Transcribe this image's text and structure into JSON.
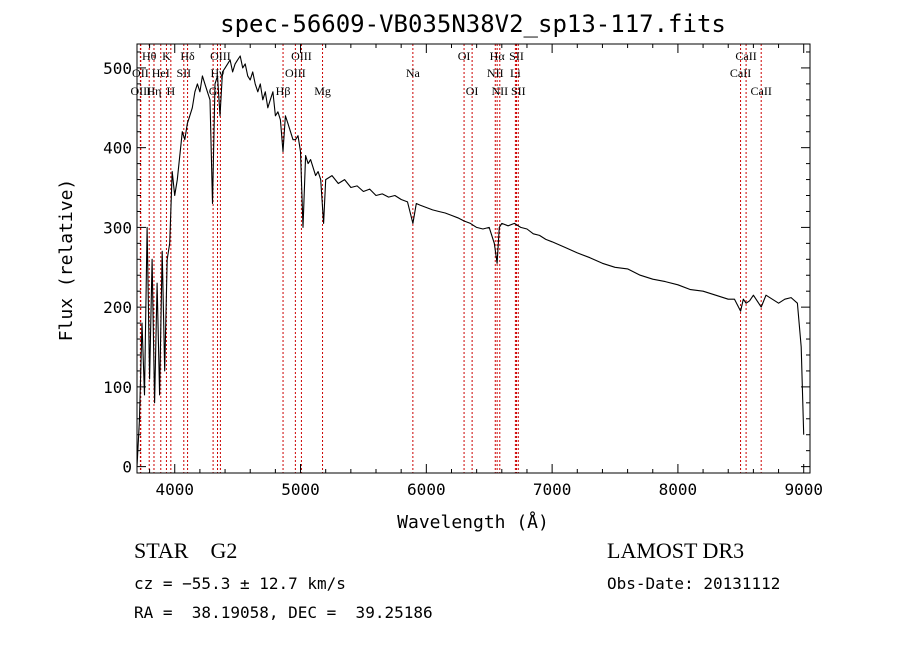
{
  "chart_data": {
    "type": "line",
    "title": "spec-56609-VB035N38V2_sp13-117.fits",
    "xlabel": "Wavelength (Å)",
    "ylabel": "Flux (relative)",
    "xlim": [
      3700,
      9050
    ],
    "ylim": [
      -8,
      530
    ],
    "xticks": [
      4000,
      5000,
      6000,
      7000,
      8000,
      9000
    ],
    "yticks": [
      0,
      100,
      200,
      300,
      400,
      500
    ],
    "grid": false,
    "series": [
      {
        "name": "spectrum",
        "x": [
          3700,
          3720,
          3740,
          3760,
          3780,
          3800,
          3820,
          3840,
          3860,
          3880,
          3900,
          3920,
          3940,
          3960,
          3980,
          4000,
          4020,
          4040,
          4060,
          4080,
          4100,
          4120,
          4140,
          4160,
          4180,
          4200,
          4220,
          4240,
          4260,
          4280,
          4300,
          4320,
          4340,
          4360,
          4380,
          4400,
          4420,
          4440,
          4460,
          4480,
          4500,
          4520,
          4540,
          4560,
          4580,
          4600,
          4620,
          4640,
          4660,
          4680,
          4700,
          4720,
          4740,
          4760,
          4780,
          4800,
          4820,
          4840,
          4861,
          4880,
          4900,
          4920,
          4940,
          4960,
          4980,
          5000,
          5020,
          5040,
          5060,
          5080,
          5100,
          5120,
          5140,
          5160,
          5183,
          5200,
          5250,
          5300,
          5350,
          5400,
          5450,
          5500,
          5550,
          5600,
          5650,
          5700,
          5750,
          5800,
          5850,
          5893,
          5920,
          5950,
          6000,
          6050,
          6100,
          6150,
          6200,
          6250,
          6300,
          6350,
          6400,
          6450,
          6500,
          6540,
          6563,
          6580,
          6600,
          6650,
          6700,
          6750,
          6800,
          6850,
          6900,
          6950,
          7000,
          7100,
          7200,
          7300,
          7400,
          7500,
          7600,
          7700,
          7800,
          7900,
          8000,
          8100,
          8200,
          8300,
          8400,
          8450,
          8498,
          8520,
          8542,
          8570,
          8600,
          8662,
          8700,
          8750,
          8800,
          8850,
          8900,
          8950,
          8980,
          9000
        ],
        "y": [
          0,
          60,
          180,
          90,
          300,
          110,
          260,
          80,
          230,
          90,
          270,
          120,
          260,
          280,
          370,
          340,
          360,
          390,
          420,
          410,
          430,
          440,
          450,
          470,
          480,
          470,
          490,
          480,
          470,
          460,
          330,
          480,
          490,
          440,
          495,
          500,
          505,
          510,
          495,
          505,
          510,
          515,
          500,
          505,
          490,
          485,
          495,
          480,
          470,
          480,
          460,
          470,
          450,
          460,
          470,
          440,
          445,
          435,
          395,
          440,
          430,
          420,
          410,
          410,
          415,
          395,
          300,
          390,
          380,
          385,
          375,
          365,
          370,
          360,
          305,
          360,
          365,
          355,
          360,
          350,
          352,
          345,
          348,
          340,
          342,
          338,
          340,
          335,
          332,
          305,
          330,
          328,
          325,
          322,
          320,
          318,
          315,
          312,
          308,
          305,
          300,
          298,
          300,
          280,
          255,
          300,
          305,
          302,
          305,
          300,
          298,
          292,
          290,
          285,
          282,
          275,
          268,
          262,
          255,
          250,
          248,
          240,
          235,
          232,
          228,
          222,
          220,
          215,
          210,
          210,
          195,
          210,
          205,
          208,
          215,
          200,
          215,
          210,
          205,
          210,
          212,
          205,
          150,
          40
        ]
      }
    ],
    "line_markers": [
      {
        "label": "Hθ",
        "wavelength": 3797,
        "row": 1
      },
      {
        "label": "OII",
        "wavelength": 3727,
        "row": 2
      },
      {
        "label": "OIII",
        "wavelength": 3730,
        "row": 3
      },
      {
        "label": "K",
        "wavelength": 3934,
        "row": 1
      },
      {
        "label": "HeI",
        "wavelength": 3889,
        "row": 2
      },
      {
        "label": "Hη",
        "wavelength": 3835,
        "row": 3
      },
      {
        "label": "Hδ",
        "wavelength": 4102,
        "row": 1
      },
      {
        "label": "SII",
        "wavelength": 4072,
        "row": 2
      },
      {
        "label": "H",
        "wavelength": 3969,
        "row": 3
      },
      {
        "label": "OIII",
        "wavelength": 4363,
        "row": 1
      },
      {
        "label": "Hγ",
        "wavelength": 4340,
        "row": 2
      },
      {
        "label": "G",
        "wavelength": 4305,
        "row": 3
      },
      {
        "label": "OIII",
        "wavelength": 5007,
        "row": 1
      },
      {
        "label": "OIII",
        "wavelength": 4959,
        "row": 2
      },
      {
        "label": "Hβ",
        "wavelength": 4861,
        "row": 3
      },
      {
        "label": "Mg",
        "wavelength": 5175,
        "row": 3
      },
      {
        "label": "Na",
        "wavelength": 5893,
        "row": 2
      },
      {
        "label": "OI",
        "wavelength": 6300,
        "row": 1
      },
      {
        "label": "OI",
        "wavelength": 6364,
        "row": 3
      },
      {
        "label": "Hα",
        "wavelength": 6563,
        "row": 1
      },
      {
        "label": "NII",
        "wavelength": 6548,
        "row": 2
      },
      {
        "label": "NII",
        "wavelength": 6584,
        "row": 3
      },
      {
        "label": "SII",
        "wavelength": 6717,
        "row": 1
      },
      {
        "label": "Li",
        "wavelength": 6708,
        "row": 2
      },
      {
        "label": "SII",
        "wavelength": 6731,
        "row": 3
      },
      {
        "label": "CaII",
        "wavelength": 8542,
        "row": 1
      },
      {
        "label": "CaII",
        "wavelength": 8498,
        "row": 2
      },
      {
        "label": "CaII",
        "wavelength": 8662,
        "row": 3
      }
    ],
    "colors": {
      "spectrum": "#000000",
      "markers": "#cc0000",
      "axes": "#000000"
    }
  },
  "info": {
    "class_line": "STAR    G2",
    "velocity_line": "cz = −55.3 ± 12.7 km/s",
    "coords_line": "RA =  38.19058, DEC =  39.25186",
    "survey": "LAMOST DR3",
    "obs_date": "Obs-Date: 20131112"
  }
}
